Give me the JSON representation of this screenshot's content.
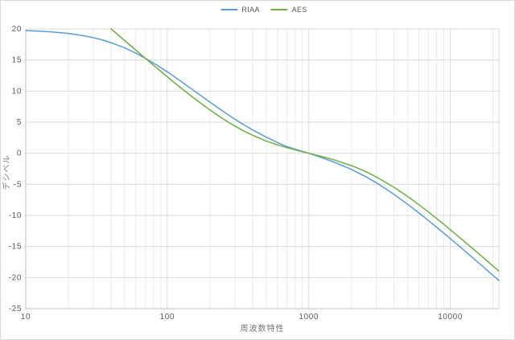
{
  "style": {
    "background": "#ffffff",
    "frame_border": "#d9d9d9",
    "grid_major": "#d9d9d9",
    "grid_minor": "#ebebeb",
    "axis_line": "#bfbfbf",
    "tick_label_color": "#595959",
    "title_color": "#757575"
  },
  "chart_data": {
    "type": "line",
    "title": "",
    "xlabel": "周波数特性",
    "ylabel": "デシベル",
    "x_scale": "log",
    "x_range": [
      10,
      22050
    ],
    "y_range": [
      -25,
      20
    ],
    "x_ticks": [
      10,
      100,
      1000,
      10000
    ],
    "y_ticks": [
      20,
      15,
      10,
      5,
      0,
      -5,
      -10,
      -15,
      -20,
      -25
    ],
    "grid": true,
    "legend_position": "top-center",
    "series": [
      {
        "name": "RIAA",
        "color": "#5b9bd5",
        "points": [
          [
            10,
            19.74
          ],
          [
            12,
            19.67
          ],
          [
            15,
            19.54
          ],
          [
            20,
            19.27
          ],
          [
            25,
            18.95
          ],
          [
            30,
            18.6
          ],
          [
            35,
            18.2
          ],
          [
            40,
            17.79
          ],
          [
            50,
            16.95
          ],
          [
            60,
            16.1
          ],
          [
            70,
            15.28
          ],
          [
            85,
            14.13
          ],
          [
            100,
            13.09
          ],
          [
            120,
            11.85
          ],
          [
            150,
            10.27
          ],
          [
            200,
            8.23
          ],
          [
            250,
            6.68
          ],
          [
            300,
            5.49
          ],
          [
            350,
            4.53
          ],
          [
            400,
            3.76
          ],
          [
            500,
            2.59
          ],
          [
            600,
            1.73
          ],
          [
            700,
            1.07
          ],
          [
            850,
            0.48
          ],
          [
            1000,
            0.0
          ],
          [
            1200,
            -0.61
          ],
          [
            1500,
            -1.4
          ],
          [
            2000,
            -2.59
          ],
          [
            2500,
            -3.7
          ],
          [
            3000,
            -4.74
          ],
          [
            4000,
            -6.61
          ],
          [
            5000,
            -8.21
          ],
          [
            6000,
            -9.6
          ],
          [
            7000,
            -10.82
          ],
          [
            8500,
            -12.39
          ],
          [
            10000,
            -13.73
          ],
          [
            12000,
            -15.26
          ],
          [
            15000,
            -17.16
          ],
          [
            17000,
            -18.23
          ],
          [
            20000,
            -19.62
          ],
          [
            22050,
            -20.46
          ]
        ]
      },
      {
        "name": "AES",
        "color": "#70ad47",
        "points": [
          [
            40,
            20.04
          ],
          [
            45,
            19.03
          ],
          [
            50,
            18.13
          ],
          [
            60,
            16.57
          ],
          [
            70,
            15.27
          ],
          [
            85,
            13.64
          ],
          [
            100,
            12.3
          ],
          [
            120,
            10.82
          ],
          [
            150,
            9.08
          ],
          [
            200,
            6.96
          ],
          [
            250,
            5.47
          ],
          [
            300,
            4.38
          ],
          [
            350,
            3.54
          ],
          [
            400,
            2.9
          ],
          [
            500,
            1.98
          ],
          [
            600,
            1.35
          ],
          [
            700,
            0.9
          ],
          [
            850,
            0.38
          ],
          [
            1000,
            0.0
          ],
          [
            1200,
            -0.44
          ],
          [
            1500,
            -1.04
          ],
          [
            2000,
            -1.98
          ],
          [
            2500,
            -2.9
          ],
          [
            3000,
            -3.8
          ],
          [
            4000,
            -5.47
          ],
          [
            5000,
            -6.96
          ],
          [
            6000,
            -8.28
          ],
          [
            7000,
            -9.45
          ],
          [
            8500,
            -10.98
          ],
          [
            10000,
            -12.3
          ],
          [
            12000,
            -13.81
          ],
          [
            15000,
            -15.68
          ],
          [
            17000,
            -16.74
          ],
          [
            20000,
            -18.13
          ],
          [
            22050,
            -18.96
          ]
        ]
      }
    ]
  },
  "legend": {
    "items": [
      {
        "label": "RIAA"
      },
      {
        "label": "AES"
      }
    ]
  }
}
